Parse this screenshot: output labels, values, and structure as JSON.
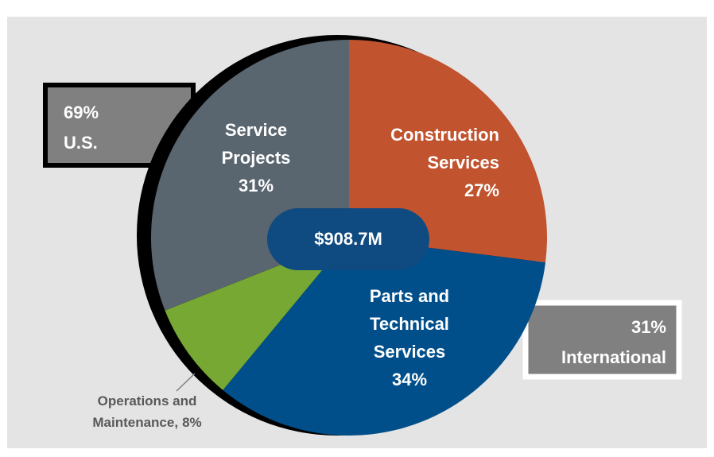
{
  "chart_data": {
    "type": "pie",
    "categories": [
      "Construction Services",
      "Parts and Technical Services",
      "Operations and Maintenance,",
      "Service Projects"
    ],
    "values": [
      27,
      34,
      8,
      31
    ],
    "value_labels": [
      "27%",
      "34%",
      "8%",
      "31%"
    ],
    "colors": [
      "#c1532f",
      "#004f8a",
      "#77a833",
      "#59656f"
    ],
    "total": "$908.7M",
    "regions": [
      {
        "share": "69%",
        "name": "U.S."
      },
      {
        "share": "31%",
        "name": "International"
      }
    ]
  }
}
